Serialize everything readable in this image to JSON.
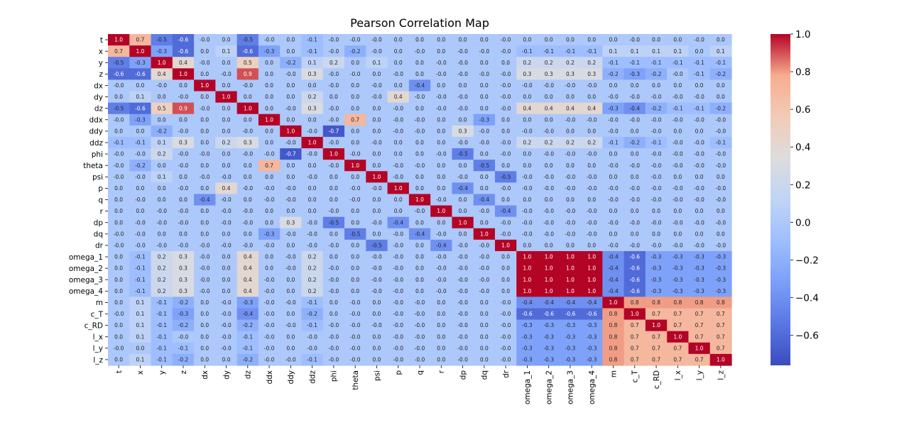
{
  "chart_data": {
    "type": "heatmap",
    "title": "Pearson Correlation Map",
    "colormap": "coolwarm",
    "value_range": [
      -0.76,
      1.0
    ],
    "labels": [
      "t",
      "x",
      "y",
      "z",
      "dx",
      "dy",
      "dz",
      "ddx",
      "ddy",
      "ddz",
      "phi",
      "theta",
      "psi",
      "p",
      "q",
      "r",
      "dp",
      "dq",
      "dr",
      "omega_1",
      "omega_2",
      "omega_3",
      "omega_4",
      "m",
      "c_T",
      "c_RD",
      "l_x",
      "l_y",
      "l_z"
    ],
    "annotations": [
      [
        "1.0",
        "0.7",
        "-0.5",
        "-0.6",
        "-0.0",
        "0.0",
        "-0.5",
        "-0.0",
        "0.0",
        "-0.1",
        "-0.0",
        "-0.0",
        "-0.0",
        "0.0",
        "0.0",
        "0.0",
        "0.0",
        "0.0",
        "-0.0",
        "0.0",
        "0.0",
        "0.0",
        "0.0",
        "0.0",
        "-0.0",
        "0.0",
        "0.0",
        "-0.0",
        "0.0"
      ],
      [
        "0.7",
        "1.0",
        "-0.3",
        "-0.6",
        "0.0",
        "0.1",
        "-0.6",
        "-0.3",
        "0.0",
        "-0.1",
        "-0.0",
        "-0.2",
        "-0.0",
        "0.0",
        "-0.0",
        "0.0",
        "-0.0",
        "-0.0",
        "-0.0",
        "-0.1",
        "-0.1",
        "-0.1",
        "-0.1",
        "0.1",
        "0.1",
        "0.1",
        "0.1",
        "0.0",
        "0.1"
      ],
      [
        "-0.5",
        "-0.3",
        "1.0",
        "0.4",
        "-0.0",
        "0.0",
        "0.5",
        "0.0",
        "-0.2",
        "0.1",
        "0.2",
        "0.0",
        "0.1",
        "0.0",
        "0.0",
        "-0.0",
        "-0.0",
        "0.0",
        "0.0",
        "0.2",
        "0.2",
        "0.2",
        "0.2",
        "-0.1",
        "-0.1",
        "-0.1",
        "-0.1",
        "-0.1",
        "-0.1"
      ],
      [
        "-0.6",
        "-0.6",
        "0.4",
        "1.0",
        "0.0",
        "-0.0",
        "0.9",
        "0.0",
        "-0.0",
        "0.3",
        "-0.0",
        "-0.0",
        "0.0",
        "-0.0",
        "0.0",
        "-0.0",
        "-0.0",
        "-0.0",
        "-0.0",
        "0.3",
        "0.3",
        "0.3",
        "0.3",
        "-0.2",
        "-0.3",
        "-0.2",
        "-0.0",
        "-0.1",
        "-0.2"
      ],
      [
        "-0.0",
        "0.0",
        "-0.0",
        "0.0",
        "1.0",
        "0.0",
        "-0.0",
        "0.0",
        "0.0",
        "0.0",
        "-0.0",
        "0.0",
        "-0.0",
        "0.0",
        "-0.4",
        "0.0",
        "0.0",
        "0.0",
        "-0.0",
        "-0.0",
        "-0.0",
        "-0.0",
        "-0.0",
        "0.0",
        "0.0",
        "0.0",
        "0.0",
        "0.0",
        "0.0"
      ],
      [
        "0.0",
        "0.1",
        "0.0",
        "-0.0",
        "0.0",
        "1.0",
        "0.0",
        "0.0",
        "0.0",
        "0.2",
        "0.0",
        "0.0",
        "-0.0",
        "0.4",
        "-0.0",
        "-0.0",
        "-0.0",
        "0.0",
        "-0.0",
        "0.0",
        "0.0",
        "0.0",
        "0.0",
        "-0.0",
        "-0.0",
        "-0.0",
        "-0.0",
        "-0.0",
        "0.0"
      ],
      [
        "-0.5",
        "-0.6",
        "0.5",
        "0.9",
        "-0.0",
        "0.0",
        "1.0",
        "0.0",
        "-0.0",
        "0.3",
        "-0.0",
        "0.0",
        "0.0",
        "-0.0",
        "0.0",
        "-0.0",
        "-0.0",
        "0.0",
        "-0.0",
        "0.4",
        "0.4",
        "0.4",
        "0.4",
        "-0.3",
        "-0.4",
        "-0.2",
        "-0.1",
        "-0.1",
        "-0.2"
      ],
      [
        "-0.0",
        "-0.3",
        "0.0",
        "0.0",
        "0.0",
        "0.0",
        "0.0",
        "1.0",
        "0.0",
        "0.0",
        "-0.0",
        "0.7",
        "0.0",
        "-0.0",
        "-0.0",
        "0.0",
        "0.0",
        "-0.3",
        "0.0",
        "0.0",
        "0.0",
        "-0.0",
        "-0.0",
        "-0.0",
        "-0.0",
        "-0.0",
        "-0.0",
        "-0.0",
        "-0.0"
      ],
      [
        "0.0",
        "0.0",
        "-0.2",
        "-0.0",
        "0.0",
        "0.0",
        "-0.0",
        "0.0",
        "1.0",
        "-0.0",
        "-0.7",
        "0.0",
        "0.0",
        "-0.0",
        "-0.0",
        "0.0",
        "0.3",
        "-0.0",
        "0.0",
        "-0.0",
        "-0.0",
        "0.0",
        "0.0",
        "-0.0",
        "0.0",
        "-0.0",
        "0.0",
        "0.0",
        "-0.0"
      ],
      [
        "-0.1",
        "-0.1",
        "0.1",
        "0.3",
        "0.0",
        "0.2",
        "0.3",
        "0.0",
        "-0.0",
        "1.0",
        "-0.0",
        "0.0",
        "-0.0",
        "0.0",
        "0.0",
        "0.0",
        "-0.0",
        "-0.0",
        "-0.0",
        "0.2",
        "0.2",
        "0.2",
        "0.2",
        "-0.1",
        "-0.2",
        "-0.1",
        "-0.0",
        "-0.0",
        "-0.1"
      ],
      [
        "-0.0",
        "-0.0",
        "0.2",
        "-0.0",
        "-0.0",
        "0.0",
        "-0.0",
        "-0.0",
        "-0.7",
        "-0.0",
        "1.0",
        "-0.0",
        "0.0",
        "0.0",
        "0.0",
        "-0.0",
        "-0.5",
        "0.0",
        "-0.0",
        "0.0",
        "-0.0",
        "-0.0",
        "-0.0",
        "0.0",
        "0.0",
        "-0.0",
        "-0.0",
        "-0.0",
        "-0.0"
      ],
      [
        "-0.0",
        "-0.2",
        "0.0",
        "-0.0",
        "0.0",
        "0.0",
        "0.0",
        "0.7",
        "0.0",
        "0.0",
        "-0.0",
        "1.0",
        "0.0",
        "-0.0",
        "-0.0",
        "0.0",
        "0.0",
        "-0.5",
        "0.0",
        "0.0",
        "0.0",
        "0.0",
        "0.0",
        "-0.0",
        "-0.0",
        "-0.0",
        "-0.0",
        "-0.0",
        "-0.0"
      ],
      [
        "-0.0",
        "-0.0",
        "0.1",
        "0.0",
        "-0.0",
        "-0.0",
        "0.0",
        "0.0",
        "0.0",
        "-0.0",
        "0.0",
        "0.0",
        "1.0",
        "-0.0",
        "0.0",
        "0.0",
        "-0.0",
        "0.0",
        "-0.5",
        "-0.0",
        "-0.0",
        "-0.0",
        "-0.0",
        "0.0",
        "0.0",
        "-0.0",
        "0.0",
        "0.0",
        "0.0"
      ],
      [
        "0.0",
        "0.0",
        "0.0",
        "-0.0",
        "0.0",
        "0.4",
        "-0.0",
        "-0.0",
        "-0.0",
        "0.0",
        "0.0",
        "-0.0",
        "-0.0",
        "1.0",
        "0.0",
        "0.0",
        "-0.4",
        "0.0",
        "-0.0",
        "-0.0",
        "-0.0",
        "-0.0",
        "-0.0",
        "-0.0",
        "-0.0",
        "-0.0",
        "-0.0",
        "-0.0",
        "-0.0"
      ],
      [
        "0.0",
        "-0.0",
        "0.0",
        "0.0",
        "-0.4",
        "-0.0",
        "0.0",
        "-0.0",
        "-0.0",
        "0.0",
        "0.0",
        "-0.0",
        "0.0",
        "0.0",
        "1.0",
        "-0.0",
        "0.0",
        "-0.4",
        "0.0",
        "0.0",
        "0.0",
        "0.0",
        "0.0",
        "-0.0",
        "-0.0",
        "-0.0",
        "-0.0",
        "-0.0",
        "-0.0"
      ],
      [
        "0.0",
        "0.0",
        "-0.0",
        "-0.0",
        "0.0",
        "-0.0",
        "-0.0",
        "0.0",
        "0.0",
        "0.0",
        "-0.0",
        "0.0",
        "0.0",
        "0.0",
        "-0.0",
        "1.0",
        "0.0",
        "-0.0",
        "-0.4",
        "-0.0",
        "-0.0",
        "-0.0",
        "-0.0",
        "0.0",
        "0.0",
        "0.0",
        "0.0",
        "0.0",
        "0.0"
      ],
      [
        "0.0",
        "-0.0",
        "-0.0",
        "-0.0",
        "0.0",
        "-0.0",
        "-0.0",
        "0.0",
        "0.3",
        "-0.0",
        "-0.5",
        "0.0",
        "-0.0",
        "-0.4",
        "0.0",
        "0.0",
        "1.0",
        "0.0",
        "-0.0",
        "-0.0",
        "-0.0",
        "-0.0",
        "-0.0",
        "-0.0",
        "-0.0",
        "-0.0",
        "-0.0",
        "-0.0",
        "-0.0"
      ],
      [
        "-0.0",
        "-0.0",
        "0.0",
        "0.0",
        "0.0",
        "0.0",
        "0.0",
        "-0.3",
        "-0.0",
        "-0.0",
        "0.0",
        "-0.5",
        "0.0",
        "-0.0",
        "-0.4",
        "-0.0",
        "0.0",
        "1.0",
        "-0.0",
        "-0.0",
        "-0.0",
        "-0.0",
        "-0.0",
        "0.0",
        "0.0",
        "0.0",
        "0.0",
        "0.0",
        "0.0"
      ],
      [
        "-0.0",
        "-0.0",
        "-0.0",
        "-0.0",
        "-0.0",
        "-0.0",
        "-0.0",
        "-0.0",
        "0.0",
        "-0.0",
        "-0.0",
        "0.0",
        "-0.5",
        "-0.0",
        "0.0",
        "-0.4",
        "-0.0",
        "-0.0",
        "1.0",
        "0.0",
        "0.0",
        "0.0",
        "0.0",
        "-0.0",
        "-0.0",
        "-0.0",
        "-0.0",
        "-0.0",
        "-0.0"
      ],
      [
        "0.0",
        "-0.1",
        "0.2",
        "0.3",
        "-0.0",
        "0.0",
        "0.4",
        "0.0",
        "-0.0",
        "0.2",
        "0.0",
        "0.0",
        "-0.0",
        "-0.0",
        "0.0",
        "-0.0",
        "-0.0",
        "-0.0",
        "0.0",
        "1.0",
        "1.0",
        "1.0",
        "1.0",
        "-0.4",
        "-0.6",
        "-0.3",
        "-0.3",
        "-0.3",
        "-0.3"
      ],
      [
        "0.0",
        "-0.1",
        "0.2",
        "0.3",
        "-0.0",
        "0.0",
        "0.4",
        "0.0",
        "-0.0",
        "0.2",
        "-0.0",
        "0.0",
        "-0.0",
        "-0.0",
        "0.0",
        "-0.0",
        "-0.0",
        "-0.0",
        "0.0",
        "1.0",
        "1.0",
        "1.0",
        "1.0",
        "-0.4",
        "-0.6",
        "-0.3",
        "-0.3",
        "-0.3",
        "-0.3"
      ],
      [
        "0.0",
        "-0.1",
        "0.2",
        "0.3",
        "-0.0",
        "0.0",
        "0.4",
        "-0.0",
        "0.0",
        "0.2",
        "-0.0",
        "0.0",
        "-0.0",
        "-0.0",
        "0.0",
        "-0.0",
        "-0.0",
        "-0.0",
        "0.0",
        "1.0",
        "1.0",
        "1.0",
        "1.0",
        "-0.4",
        "-0.6",
        "-0.3",
        "-0.3",
        "-0.3",
        "-0.3"
      ],
      [
        "0.0",
        "-0.1",
        "0.2",
        "0.3",
        "-0.0",
        "0.0",
        "0.4",
        "-0.0",
        "0.0",
        "0.2",
        "-0.0",
        "0.0",
        "-0.0",
        "-0.0",
        "0.0",
        "-0.0",
        "-0.0",
        "-0.0",
        "0.0",
        "1.0",
        "1.0",
        "1.0",
        "1.0",
        "-0.4",
        "-0.6",
        "-0.3",
        "-0.3",
        "-0.3",
        "-0.3"
      ],
      [
        "0.0",
        "0.1",
        "-0.1",
        "-0.2",
        "0.0",
        "-0.0",
        "-0.3",
        "-0.0",
        "-0.0",
        "-0.1",
        "0.0",
        "-0.0",
        "0.0",
        "-0.0",
        "-0.0",
        "0.0",
        "-0.0",
        "0.0",
        "-0.0",
        "-0.4",
        "-0.4",
        "-0.4",
        "-0.4",
        "1.0",
        "0.8",
        "0.8",
        "0.8",
        "0.8",
        "0.8"
      ],
      [
        "-0.0",
        "0.1",
        "-0.1",
        "-0.3",
        "0.0",
        "-0.0",
        "-0.4",
        "-0.0",
        "0.0",
        "-0.2",
        "0.0",
        "-0.0",
        "0.0",
        "-0.0",
        "-0.0",
        "0.0",
        "-0.0",
        "0.0",
        "-0.0",
        "-0.6",
        "-0.6",
        "-0.6",
        "-0.6",
        "0.8",
        "1.0",
        "0.7",
        "0.7",
        "0.7",
        "0.7"
      ],
      [
        "0.0",
        "0.1",
        "-0.1",
        "-0.2",
        "0.0",
        "-0.0",
        "-0.2",
        "-0.0",
        "-0.0",
        "-0.1",
        "-0.0",
        "-0.0",
        "-0.0",
        "-0.0",
        "-0.0",
        "0.0",
        "-0.0",
        "0.0",
        "-0.0",
        "-0.3",
        "-0.3",
        "-0.3",
        "-0.3",
        "0.8",
        "0.7",
        "1.0",
        "0.7",
        "0.7",
        "0.7"
      ],
      [
        "0.0",
        "0.1",
        "-0.1",
        "-0.0",
        "0.0",
        "-0.0",
        "-0.1",
        "-0.0",
        "0.0",
        "-0.0",
        "-0.0",
        "-0.0",
        "0.0",
        "-0.0",
        "-0.0",
        "0.0",
        "-0.0",
        "0.0",
        "-0.0",
        "-0.3",
        "-0.3",
        "-0.3",
        "-0.3",
        "0.8",
        "0.7",
        "0.7",
        "1.0",
        "0.7",
        "0.7"
      ],
      [
        "-0.0",
        "0.0",
        "-0.1",
        "-0.1",
        "0.0",
        "-0.0",
        "-0.1",
        "-0.0",
        "0.0",
        "-0.0",
        "-0.0",
        "-0.0",
        "0.0",
        "-0.0",
        "-0.0",
        "0.0",
        "-0.0",
        "0.0",
        "-0.0",
        "-0.3",
        "-0.3",
        "-0.3",
        "-0.3",
        "0.8",
        "0.7",
        "0.7",
        "0.7",
        "1.0",
        "0.7"
      ],
      [
        "0.0",
        "0.1",
        "-0.1",
        "-0.2",
        "0.0",
        "0.0",
        "-0.2",
        "-0.0",
        "-0.0",
        "-0.1",
        "-0.0",
        "-0.0",
        "0.0",
        "-0.0",
        "-0.0",
        "0.0",
        "-0.0",
        "0.0",
        "-0.0",
        "-0.3",
        "-0.3",
        "-0.3",
        "-0.3",
        "0.8",
        "0.7",
        "0.7",
        "0.7",
        "0.7",
        "1.0"
      ]
    ],
    "colorbar": {
      "ticks": [
        -0.6,
        -0.4,
        -0.2,
        0.0,
        0.2,
        0.4,
        0.6,
        0.8,
        1.0
      ],
      "tick_labels": [
        "−0.6",
        "−0.4",
        "−0.2",
        "0.0",
        "0.2",
        "0.4",
        "0.6",
        "0.8",
        "1.0"
      ]
    }
  }
}
